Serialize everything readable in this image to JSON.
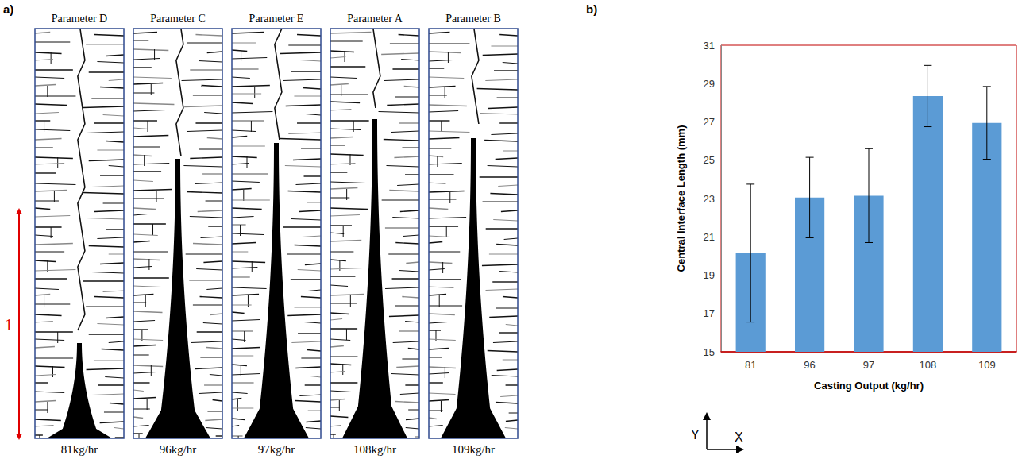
{
  "panel_a": {
    "label": "a)",
    "scale_label": "1",
    "panels": [
      {
        "title": "Parameter D",
        "caption": "81kg/hr"
      },
      {
        "title": "Parameter C",
        "caption": "96kg/hr"
      },
      {
        "title": "Parameter E",
        "caption": "97kg/hr"
      },
      {
        "title": "Parameter A",
        "caption": "108kg/hr"
      },
      {
        "title": "Parameter B",
        "caption": "109kg/hr"
      }
    ]
  },
  "chart_data": {
    "type": "bar",
    "label": "b)",
    "categories": [
      "81",
      "96",
      "97",
      "108",
      "109"
    ],
    "values": [
      20.15,
      23.05,
      23.15,
      28.35,
      26.95
    ],
    "errors": [
      3.6,
      2.1,
      2.45,
      1.6,
      1.9
    ],
    "color": "#5b9bd5",
    "x_label": "Casting Output (kg/hr)",
    "y_label": "Central Interface Length (mm)",
    "ylim": [
      15,
      31
    ],
    "yticks": [
      15,
      17,
      19,
      21,
      23,
      25,
      27,
      29,
      31
    ],
    "grid": false
  },
  "axis_indicator": {
    "x": "X",
    "y": "Y"
  }
}
